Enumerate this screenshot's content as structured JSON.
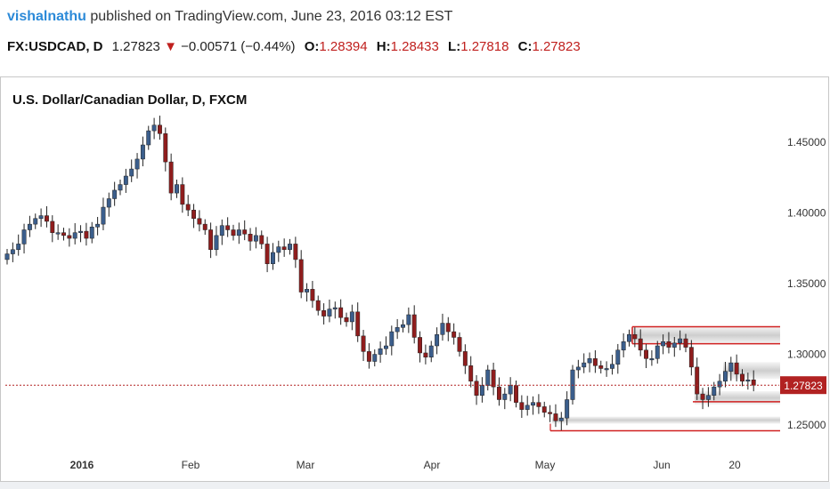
{
  "header": {
    "author": "vishalnathu",
    "published": "published on TradingView.com, June 23, 2016 03:12 EST",
    "symbol": "FX:USDCAD, D",
    "last": "1.27823",
    "down_arrow": "▼",
    "change": "−0.00571 (−0.44%)",
    "o_label": "O:",
    "o_value": "1.28394",
    "h_label": "H:",
    "h_value": "1.28433",
    "l_label": "L:",
    "l_value": "1.27818",
    "c_label": "C:",
    "c_value": "1.27823"
  },
  "chart_title": "U.S. Dollar/Canadian Dollar, D, FXCM",
  "colors": {
    "up": "#3b5e8c",
    "down": "#8f1d1d",
    "grid_text": "#333333",
    "last_price_bg": "#b22222",
    "support_line": "#d02020",
    "zone_fill": "#c8c8c8"
  },
  "chart_data": {
    "type": "candlestick",
    "title": "U.S. Dollar/Canadian Dollar, D, FXCM",
    "y_tick_labels": [
      "1.45000",
      "1.40000",
      "1.35000",
      "1.30000",
      "1.25000"
    ],
    "y_ticks": [
      1.45,
      1.4,
      1.35,
      1.3,
      1.25
    ],
    "x_tick_labels": [
      "2016",
      "Feb",
      "Mar",
      "Apr",
      "May",
      "Jun",
      "20"
    ],
    "ylim": [
      1.235,
      1.47
    ],
    "last_price_label": "1.27823",
    "last_price": 1.27823,
    "closes": [
      1.371,
      1.374,
      1.378,
      1.388,
      1.392,
      1.396,
      1.398,
      1.394,
      1.386,
      1.386,
      1.384,
      1.382,
      1.386,
      1.387,
      1.382,
      1.39,
      1.392,
      1.404,
      1.41,
      1.416,
      1.42,
      1.426,
      1.431,
      1.438,
      1.448,
      1.458,
      1.462,
      1.456,
      1.436,
      1.414,
      1.42,
      1.406,
      1.402,
      1.396,
      1.392,
      1.388,
      1.374,
      1.384,
      1.391,
      1.388,
      1.384,
      1.388,
      1.385,
      1.38,
      1.384,
      1.378,
      1.364,
      1.372,
      1.376,
      1.374,
      1.378,
      1.367,
      1.344,
      1.346,
      1.338,
      1.331,
      1.327,
      1.332,
      1.333,
      1.326,
      1.323,
      1.33,
      1.313,
      1.302,
      1.295,
      1.3,
      1.304,
      1.306,
      1.316,
      1.319,
      1.321,
      1.328,
      1.312,
      1.301,
      1.298,
      1.306,
      1.314,
      1.322,
      1.316,
      1.312,
      1.302,
      1.292,
      1.281,
      1.271,
      1.278,
      1.289,
      1.277,
      1.268,
      1.272,
      1.278,
      1.266,
      1.261,
      1.264,
      1.266,
      1.263,
      1.259,
      1.258,
      1.253,
      1.255,
      1.268,
      1.289,
      1.291,
      1.294,
      1.297,
      1.292,
      1.29,
      1.29,
      1.293,
      1.303,
      1.309,
      1.314,
      1.311,
      1.303,
      1.297,
      1.297,
      1.306,
      1.309,
      1.305,
      1.308,
      1.311,
      1.305,
      1.291,
      1.272,
      1.268,
      1.271,
      1.277,
      1.281,
      1.288,
      1.294,
      1.286,
      1.281,
      1.282,
      1.2782
    ]
  },
  "annotations": {
    "resistance_zone": [
      1.3075,
      1.3195
    ],
    "mid_zone": [
      1.2825,
      1.2945
    ],
    "lower_zone": [
      1.2645,
      1.274
    ],
    "bottom_zone": [
      1.251,
      1.256
    ],
    "support_lines": [
      1.2665,
      1.246
    ]
  }
}
